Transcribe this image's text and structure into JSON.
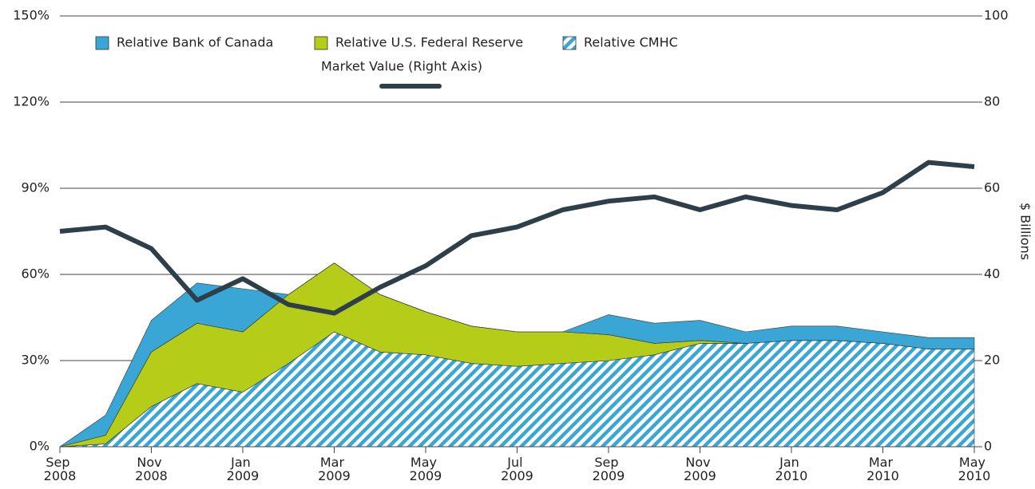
{
  "chart_data": {
    "type": "stacked_area_line",
    "x": [
      "2008-09",
      "2008-10",
      "2008-11",
      "2008-12",
      "2009-01",
      "2009-02",
      "2009-03",
      "2009-04",
      "2009-05",
      "2009-06",
      "2009-07",
      "2009-08",
      "2009-09",
      "2009-10",
      "2009-11",
      "2009-12",
      "2010-01",
      "2010-02",
      "2010-03",
      "2010-04",
      "2010-05"
    ],
    "xticks": [
      {
        "value": "2008-09",
        "label": "Sep 2008"
      },
      {
        "value": "2008-11",
        "label": "Nov 2008"
      },
      {
        "value": "2009-01",
        "label": "Jan 2009"
      },
      {
        "value": "2009-03",
        "label": "Mar 2009"
      },
      {
        "value": "2009-05",
        "label": "May 2009"
      },
      {
        "value": "2009-07",
        "label": "Jul 2009"
      },
      {
        "value": "2009-09",
        "label": "Sep 2009"
      },
      {
        "value": "2009-11",
        "label": "Nov 2009"
      },
      {
        "value": "2010-01",
        "label": "Jan 2010"
      },
      {
        "value": "2010-03",
        "label": "Mar 2010"
      },
      {
        "value": "2010-05",
        "label": "May 2010"
      }
    ],
    "ylim": [
      0,
      150
    ],
    "yticks": [
      {
        "value": 0,
        "label": "0%"
      },
      {
        "value": 30,
        "label": "30%"
      },
      {
        "value": 60,
        "label": "60%"
      },
      {
        "value": 90,
        "label": "90%"
      },
      {
        "value": 120,
        "label": "120%"
      },
      {
        "value": 150,
        "label": "150%"
      }
    ],
    "y2lim": [
      0,
      100
    ],
    "y2ticks": [
      0,
      20,
      40,
      60,
      80,
      100
    ],
    "y2label": "$ Billions",
    "grid": true,
    "series": [
      {
        "name": "Relative CMHC",
        "color": "#3aa6d6",
        "pattern": "hatch",
        "stack": true,
        "values": [
          0,
          1,
          14,
          22,
          19,
          29,
          40,
          33,
          32,
          29,
          28,
          29,
          30,
          32,
          36,
          36,
          37,
          37,
          36,
          34,
          34
        ]
      },
      {
        "name": "Relative U.S. Federal Reserve",
        "color": "#b5cc18",
        "stack": true,
        "values": [
          0,
          3,
          19,
          21,
          21,
          24,
          24,
          20,
          15,
          13,
          12,
          11,
          9,
          4,
          1,
          0,
          0,
          0,
          0,
          0,
          0
        ]
      },
      {
        "name": "Relative Bank of Canada",
        "color": "#3aa6d6",
        "stack": true,
        "values": [
          0,
          7,
          11,
          14,
          15,
          0,
          0,
          0,
          0,
          0,
          0,
          0,
          7,
          7,
          7,
          4,
          5,
          5,
          4,
          4,
          4
        ]
      },
      {
        "name": "Market Value (Right Axis)",
        "color": "#2f3f4a",
        "axis": "y2",
        "values": [
          50,
          51,
          46,
          34,
          39,
          33,
          31,
          37,
          42,
          49,
          51,
          55,
          57,
          58,
          55,
          58,
          56,
          55,
          59,
          66,
          65
        ]
      }
    ]
  }
}
